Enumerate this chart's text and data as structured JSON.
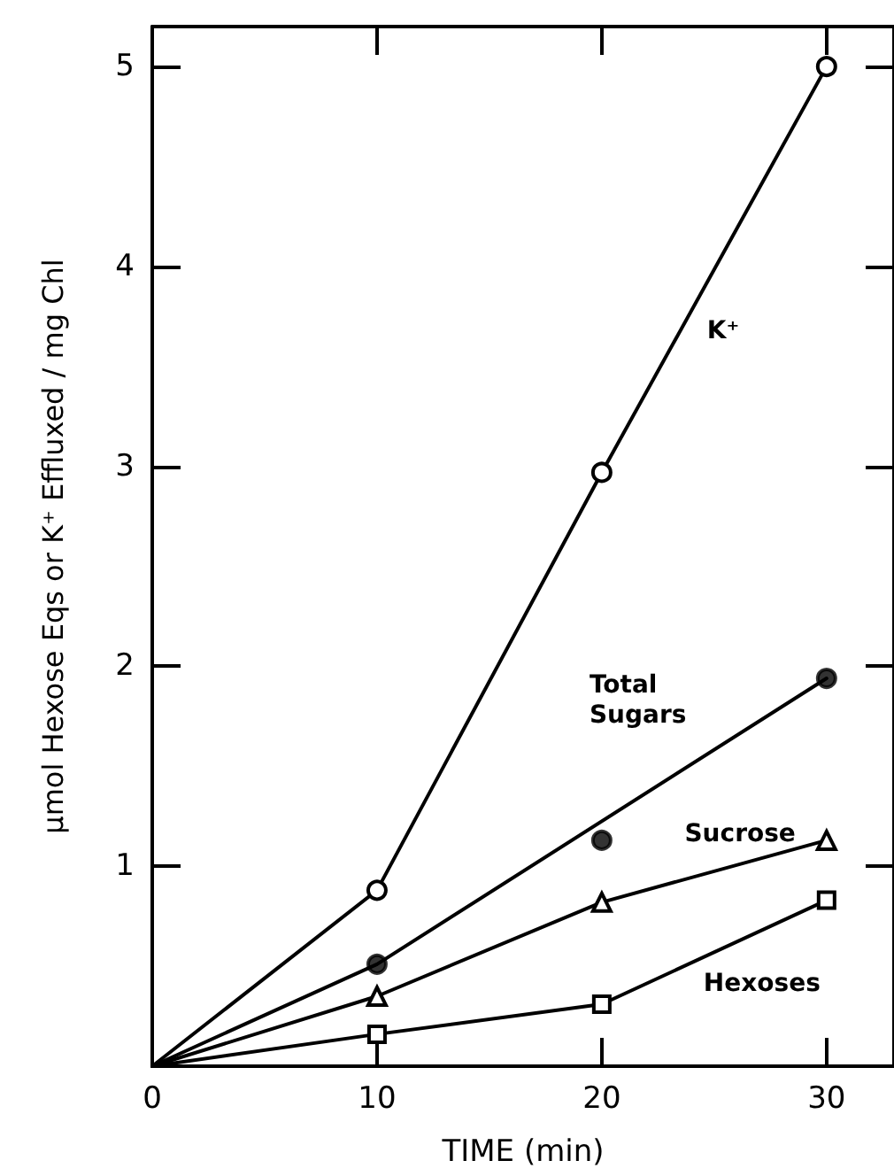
{
  "chart_data": {
    "type": "line",
    "xlabel": "TIME (min)",
    "ylabel": "μmol Hexose Eqs or K⁺ Effluxed / mg Chl",
    "xlim": [
      0,
      33
    ],
    "xticks": [
      0,
      10,
      20,
      30
    ],
    "ylim": [
      0,
      5.2
    ],
    "yticks": [
      1,
      2,
      3,
      4,
      5
    ],
    "grid": false,
    "legend": false,
    "line_style": "solid",
    "series": [
      {
        "name": "K⁺",
        "color": "#000000",
        "marker": "circle",
        "x": [
          0,
          10,
          20,
          30
        ],
        "values": [
          0,
          0.88,
          2.97,
          5.0
        ]
      },
      {
        "name": "Total Sugars",
        "color": "#000000",
        "marker": "none",
        "x": [
          0,
          10,
          30
        ],
        "values": [
          0,
          0.51,
          1.94
        ]
      },
      {
        "type": "scatter",
        "color": "#000000",
        "marker": "circle",
        "x": [
          10,
          20,
          30
        ],
        "values": [
          0.51,
          1.13,
          1.94
        ]
      },
      {
        "name": "Sucrose",
        "color": "#000000",
        "marker": "triangle",
        "x": [
          0,
          10,
          20,
          30
        ],
        "values": [
          0,
          0.35,
          0.82,
          1.13
        ]
      },
      {
        "name": "Hexoses",
        "color": "#000000",
        "marker": "square",
        "x": [
          0,
          10,
          20,
          30
        ],
        "values": [
          0,
          0.16,
          0.31,
          0.83
        ]
      }
    ]
  }
}
